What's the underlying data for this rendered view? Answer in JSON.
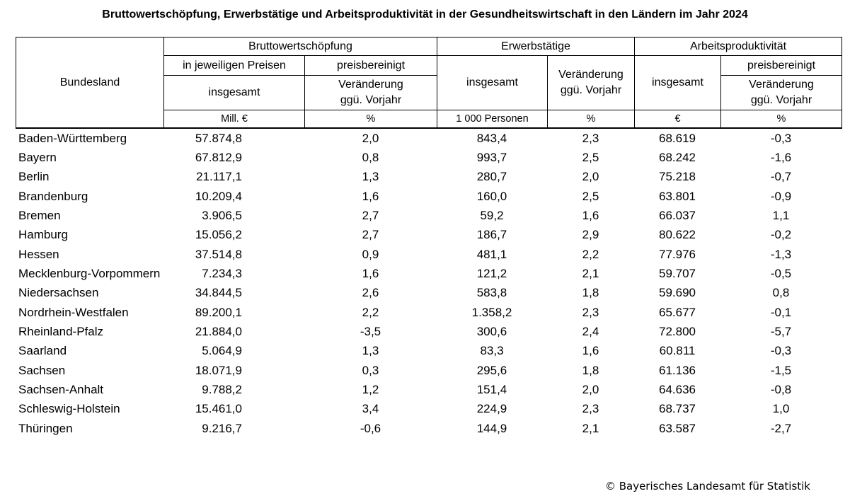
{
  "title": "Bruttowertschöpfung, Erwerbstätige und Arbeitsproduktivität in der Gesundheitswirtschaft in den Ländern im Jahr 2024",
  "table": {
    "header": {
      "bundesland": "Bundesland",
      "bws": {
        "title": "Bruttowertschöpfung",
        "jeweilige_preise": "in jeweiligen Preisen",
        "preisbereinigt": "preisbereinigt",
        "insgesamt": "insgesamt",
        "veraenderung": "Veränderung ggü. Vorjahr"
      },
      "erwerbstaetige": {
        "title": "Erwerbstätige",
        "insgesamt": "insgesamt",
        "veraenderung": "Veränderung ggü. Vorjahr"
      },
      "produktivitaet": {
        "title": "Arbeitsproduktivität",
        "insgesamt": "insgesamt",
        "preisbereinigt": "preisbereinigt",
        "veraenderung": "Veränderung ggü. Vorjahr"
      }
    },
    "units": [
      "Mill. €",
      "%",
      "1 000 Personen",
      "%",
      "€",
      "%"
    ],
    "rows": [
      [
        "Baden-Württemberg",
        "57.874,8",
        "2,0",
        "843,4",
        "2,3",
        "68.619",
        "-0,3"
      ],
      [
        "Bayern",
        "67.812,9",
        "0,8",
        "993,7",
        "2,5",
        "68.242",
        "-1,6"
      ],
      [
        "Berlin",
        "21.117,1",
        "1,3",
        "280,7",
        "2,0",
        "75.218",
        "-0,7"
      ],
      [
        "Brandenburg",
        "10.209,4",
        "1,6",
        "160,0",
        "2,5",
        "63.801",
        "-0,9"
      ],
      [
        "Bremen",
        "3.906,5",
        "2,7",
        "59,2",
        "1,6",
        "66.037",
        "1,1"
      ],
      [
        "Hamburg",
        "15.056,2",
        "2,7",
        "186,7",
        "2,9",
        "80.622",
        "-0,2"
      ],
      [
        "Hessen",
        "37.514,8",
        "0,9",
        "481,1",
        "2,2",
        "77.976",
        "-1,3"
      ],
      [
        "Mecklenburg-Vorpommern",
        "7.234,3",
        "1,6",
        "121,2",
        "2,1",
        "59.707",
        "-0,5"
      ],
      [
        "Niedersachsen",
        "34.844,5",
        "2,6",
        "583,8",
        "1,8",
        "59.690",
        "0,8"
      ],
      [
        "Nordrhein-Westfalen",
        "89.200,1",
        "2,2",
        "1.358,2",
        "2,3",
        "65.677",
        "-0,1"
      ],
      [
        "Rheinland-Pfalz",
        "21.884,0",
        "-3,5",
        "300,6",
        "2,4",
        "72.800",
        "-5,7"
      ],
      [
        "Saarland",
        "5.064,9",
        "1,3",
        "83,3",
        "1,6",
        "60.811",
        "-0,3"
      ],
      [
        "Sachsen",
        "18.071,9",
        "0,3",
        "295,6",
        "1,8",
        "61.136",
        "-1,5"
      ],
      [
        "Sachsen-Anhalt",
        "9.788,2",
        "1,2",
        "151,4",
        "2,0",
        "64.636",
        "-0,8"
      ],
      [
        "Schleswig-Holstein",
        "15.461,0",
        "3,4",
        "224,9",
        "2,3",
        "68.737",
        "1,0"
      ],
      [
        "Thüringen",
        "9.216,7",
        "-0,6",
        "144,9",
        "2,1",
        "63.587",
        "-2,7"
      ]
    ]
  },
  "footer": "© Bayerisches Landesamt für Statistik"
}
